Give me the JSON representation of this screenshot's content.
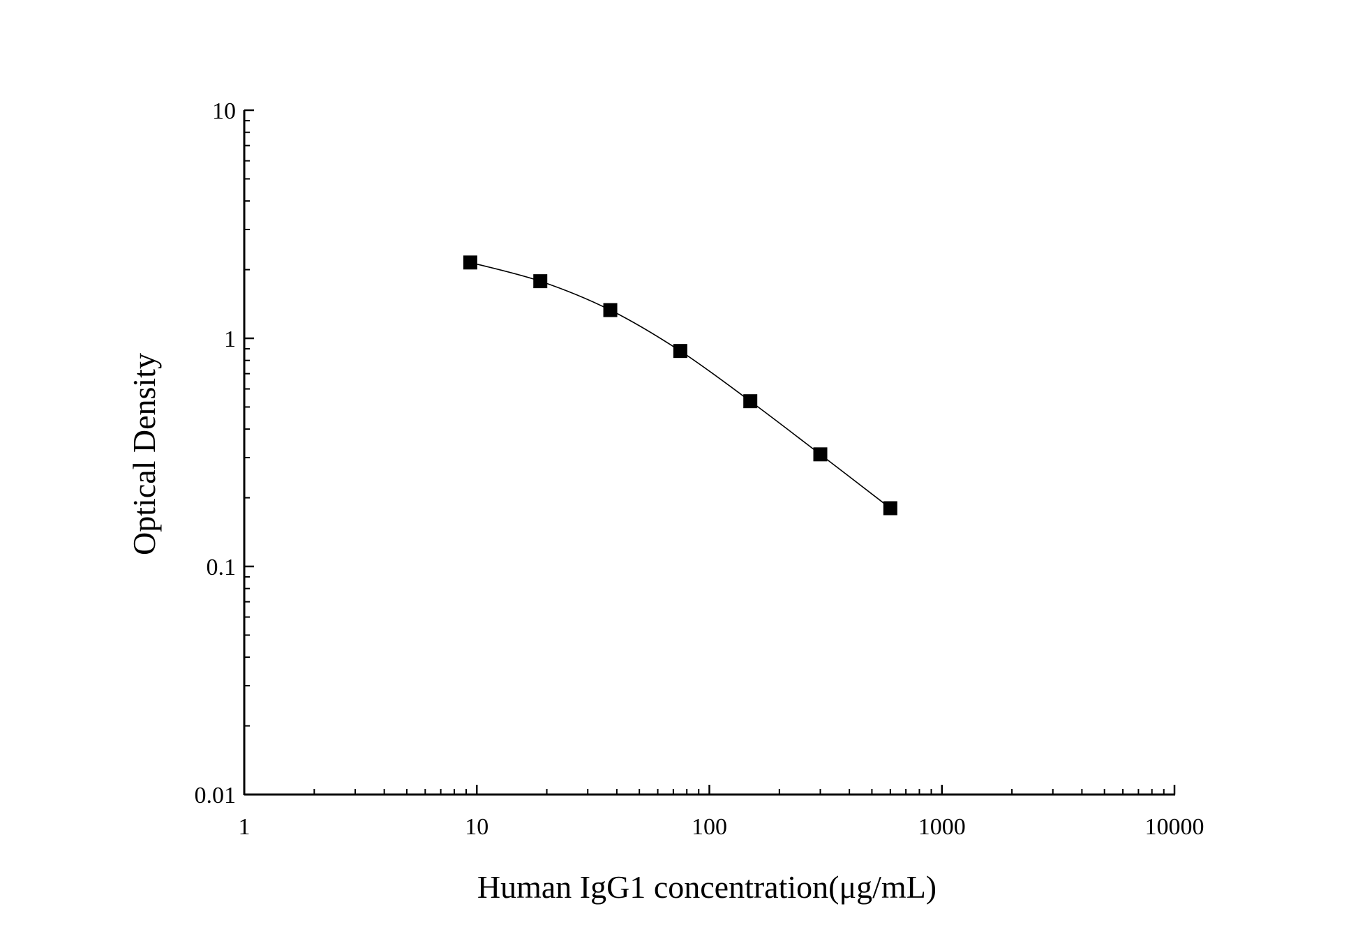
{
  "chart_data": {
    "type": "scatter",
    "title": "",
    "xlabel": "Human IgG1 concentration(μg/mL)",
    "ylabel": "Optical Density",
    "x_scale": "log",
    "y_scale": "log",
    "xlim": [
      1,
      10000
    ],
    "ylim": [
      0.01,
      10
    ],
    "x_ticks": [
      "1",
      "10",
      "100",
      "1000",
      "10000"
    ],
    "y_ticks": [
      "0.01",
      "0.1",
      "1",
      "10"
    ],
    "grid": false,
    "legend": "none",
    "marker": "square",
    "series": [
      {
        "x": [
          9.375,
          18.75,
          37.5,
          75,
          150,
          300,
          600
        ],
        "y": [
          2.15,
          1.78,
          1.33,
          0.88,
          0.53,
          0.31,
          0.18
        ],
        "fit_line": true
      }
    ],
    "colors": {
      "line": "#000000",
      "marker": "#000000",
      "axis": "#000000"
    }
  }
}
